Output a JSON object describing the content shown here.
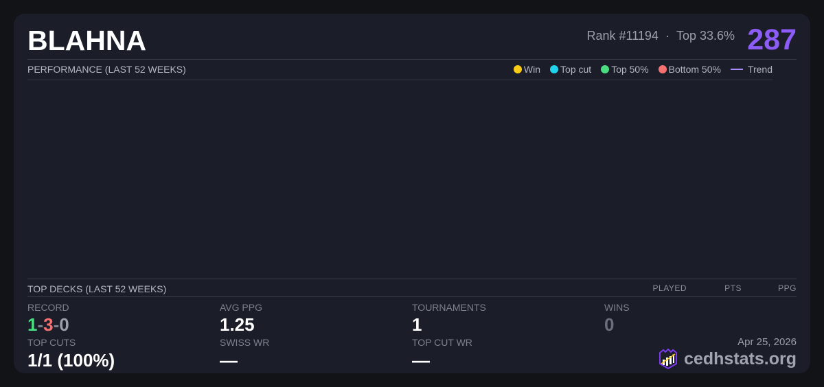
{
  "player": {
    "name": "BLAHNA",
    "rank": "Rank #11194",
    "separator": "·",
    "top_percent": "Top 33.6%",
    "score": "287"
  },
  "performance": {
    "heading": "PERFORMANCE (LAST 52 WEEKS)",
    "legend": [
      {
        "label": "Win",
        "color": "#facc15"
      },
      {
        "label": "Top cut",
        "color": "#22d3ee"
      },
      {
        "label": "Top 50%",
        "color": "#4ade80"
      },
      {
        "label": "Bottom 50%",
        "color": "#f87171"
      },
      {
        "label": "Trend",
        "color": "#a78bfa"
      }
    ]
  },
  "top_decks": {
    "heading": "TOP DECKS (LAST 52 WEEKS)",
    "columns": [
      "PLAYED",
      "PTS",
      "PPG"
    ]
  },
  "stats": {
    "record_label": "RECORD",
    "record_wins": "1",
    "record_losses": "3",
    "record_draws": "0",
    "dash": "-",
    "avg_ppg_label": "AVG PPG",
    "avg_ppg": "1.25",
    "tournaments_label": "TOURNAMENTS",
    "tournaments": "1",
    "wins_label": "WINS",
    "wins": "0",
    "top_cuts_label": "TOP CUTS",
    "top_cuts": "1/1 (100%)",
    "swiss_wr_label": "SWISS WR",
    "swiss_wr": "—",
    "top_cut_wr_label": "TOP CUT WR",
    "top_cut_wr": "—"
  },
  "footer": {
    "date": "Apr 25, 2026",
    "brand": "cedhstats.org"
  }
}
